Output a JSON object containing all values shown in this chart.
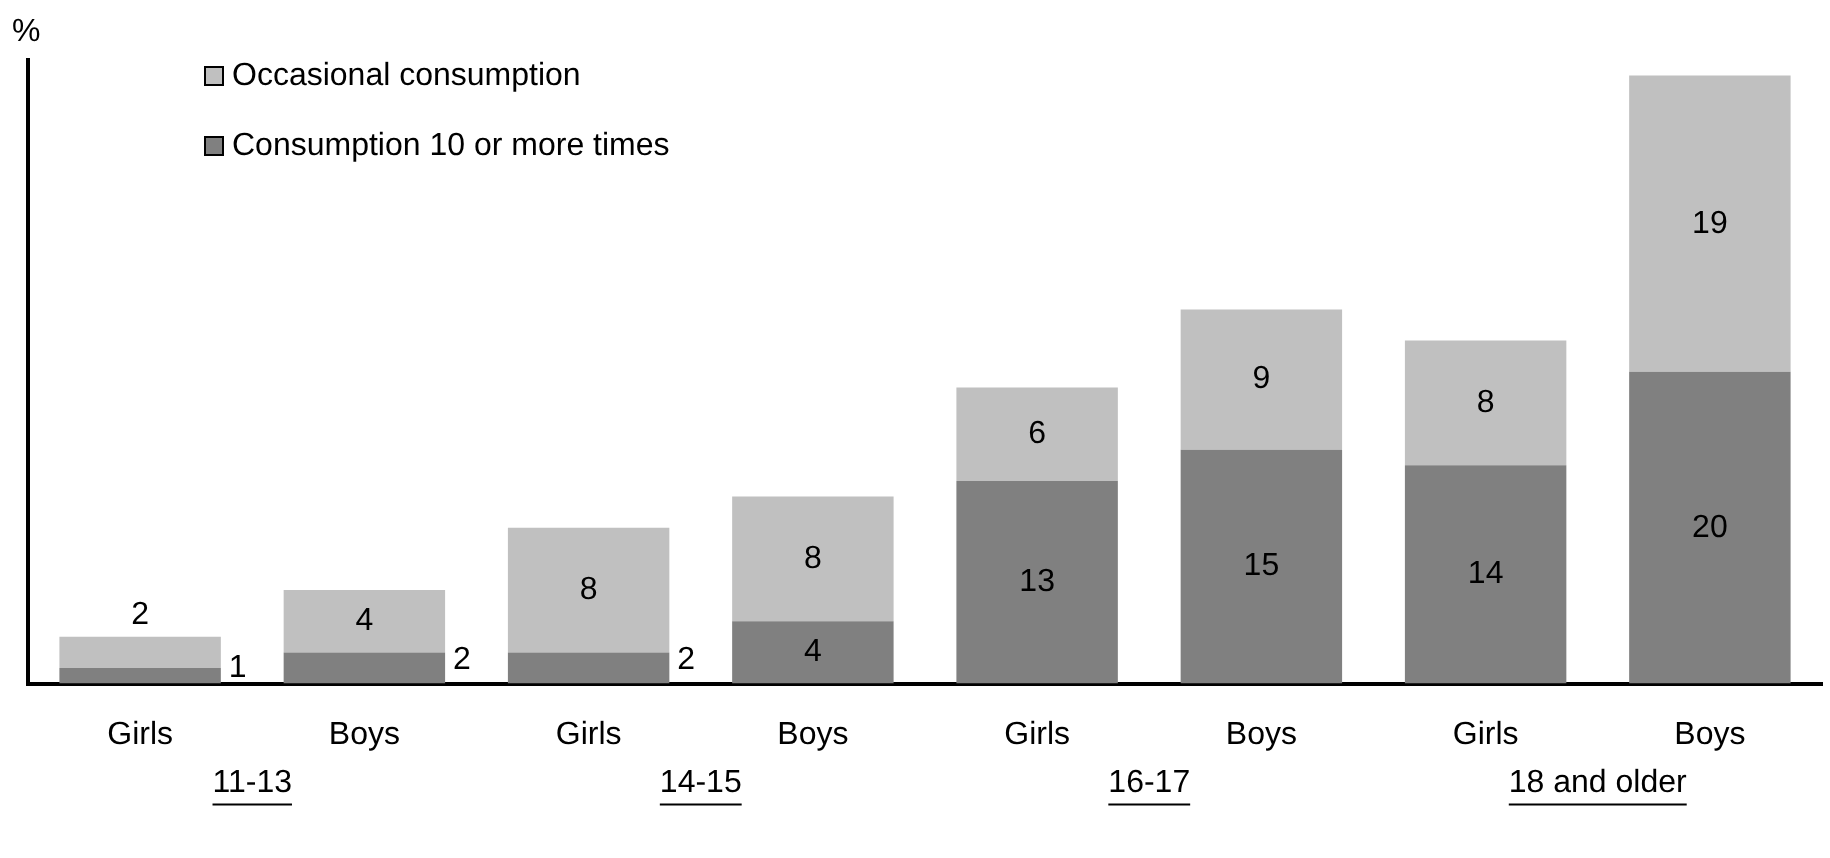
{
  "chart_data": {
    "type": "bar",
    "stacked": true,
    "ylabel": "%",
    "categories": [
      "Girls",
      "Boys",
      "Girls",
      "Boys",
      "Girls",
      "Boys",
      "Girls",
      "Boys"
    ],
    "series": [
      {
        "name": "Consumption 10 or more times",
        "color": "#808080",
        "values": [
          1,
          2,
          2,
          4,
          13,
          15,
          14,
          20
        ]
      },
      {
        "name": "Occasional consumption",
        "color": "#c0c0c0",
        "values": [
          2,
          4,
          8,
          8,
          6,
          9,
          8,
          19
        ]
      }
    ],
    "annotations": [
      "11-13",
      "14-15",
      "16-17",
      "18 and older"
    ],
    "data_labels": true,
    "legend": "top left",
    "grid": false,
    "tick_labels": "x"
  }
}
